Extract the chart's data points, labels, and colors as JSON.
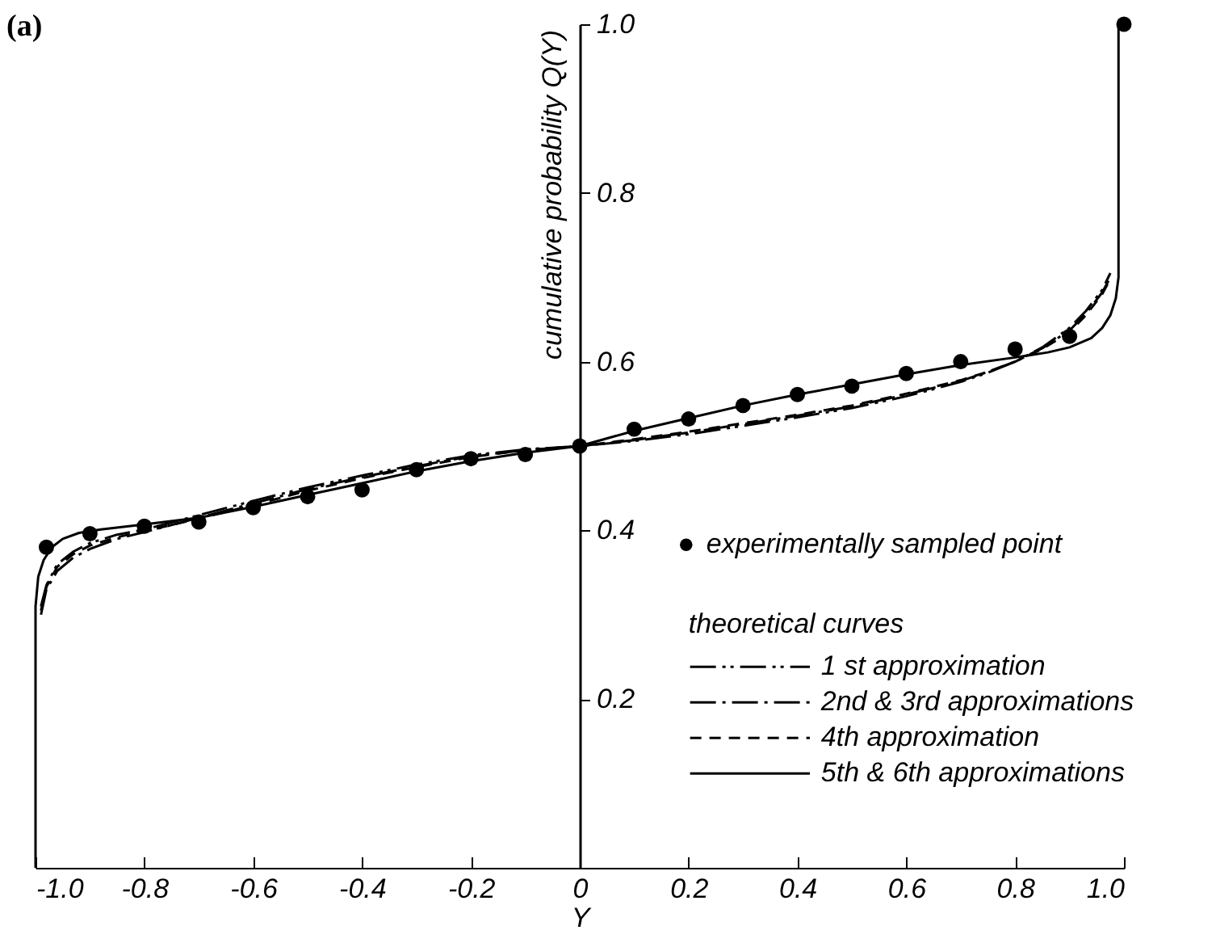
{
  "chart_data": {
    "type": "line",
    "annotations": [
      "(a)"
    ],
    "xlabel": "Y",
    "ylabel": "cumulative probability Q(Y)",
    "legend_title": "theoretical curves",
    "legend": "bottom right",
    "grid": false,
    "xlim": [
      -1.0,
      1.0
    ],
    "xticks": [
      {
        "value": -1.0,
        "label": "-1.0"
      },
      -0.8,
      -0.6,
      -0.4,
      -0.2,
      0,
      0.2,
      0.4,
      0.6,
      0.8,
      {
        "value": 1.0,
        "label": "1.0"
      }
    ],
    "ylim": [
      0,
      1.0
    ],
    "yticks": [
      0.2,
      0.4,
      0.6,
      0.8,
      {
        "value": 1.0,
        "label": "1.0"
      }
    ],
    "series": [
      {
        "name": "experimentally sampled point",
        "type": "scatter",
        "marker": "circle",
        "color": "#000000",
        "x": [
          -0.98,
          -0.9,
          -0.8,
          -0.7,
          -0.6,
          -0.5,
          -0.4,
          -0.3,
          -0.2,
          -0.1,
          0,
          0.1,
          0.2,
          0.3,
          0.4,
          0.5,
          0.6,
          0.7,
          0.8,
          0.9,
          1.0
        ],
        "values": [
          0.38,
          0.396,
          0.405,
          0.41,
          0.427,
          0.44,
          0.448,
          0.472,
          0.485,
          0.49,
          0.5,
          0.52,
          0.532,
          0.548,
          0.561,
          0.571,
          0.586,
          0.6,
          0.615,
          0.63,
          1.0
        ]
      },
      {
        "name": "1 st approximation",
        "line_style": "dashdotdot",
        "color": "#000000",
        "x": [
          -0.99,
          -0.98,
          -0.96,
          -0.93,
          -0.9,
          -0.85,
          -0.8,
          -0.7,
          -0.6,
          -0.5,
          -0.4,
          -0.3,
          -0.2,
          -0.1,
          0,
          0.1,
          0.2,
          0.3,
          0.4,
          0.5,
          0.6,
          0.7,
          0.75,
          0.8,
          0.85,
          0.9,
          0.93,
          0.96,
          0.975
        ],
        "values": [
          0.31,
          0.335,
          0.36,
          0.375,
          0.385,
          0.395,
          0.401,
          0.418,
          0.435,
          0.451,
          0.465,
          0.478,
          0.489,
          0.496,
          0.5,
          0.506,
          0.514,
          0.524,
          0.534,
          0.545,
          0.559,
          0.576,
          0.587,
          0.6,
          0.617,
          0.64,
          0.66,
          0.685,
          0.705
        ]
      },
      {
        "name": "2nd & 3rd approximations",
        "line_style": "dashdot",
        "color": "#000000",
        "x": [
          -0.99,
          -0.98,
          -0.96,
          -0.93,
          -0.9,
          -0.85,
          -0.8,
          -0.7,
          -0.6,
          -0.5,
          -0.4,
          -0.3,
          -0.2,
          -0.1,
          0,
          0.1,
          0.2,
          0.3,
          0.4,
          0.5,
          0.6,
          0.7,
          0.75,
          0.8,
          0.85,
          0.9,
          0.93,
          0.96,
          0.975
        ],
        "values": [
          0.3,
          0.33,
          0.352,
          0.368,
          0.378,
          0.39,
          0.398,
          0.415,
          0.432,
          0.449,
          0.463,
          0.476,
          0.488,
          0.495,
          0.5,
          0.507,
          0.516,
          0.526,
          0.536,
          0.547,
          0.561,
          0.577,
          0.588,
          0.6,
          0.616,
          0.637,
          0.657,
          0.682,
          0.7
        ]
      },
      {
        "name": "4th approximation",
        "line_style": "dashed",
        "color": "#000000",
        "x": [
          -0.99,
          -0.98,
          -0.96,
          -0.93,
          -0.9,
          -0.85,
          -0.8,
          -0.7,
          -0.6,
          -0.5,
          -0.4,
          -0.3,
          -0.2,
          -0.1,
          0,
          0.1,
          0.2,
          0.3,
          0.4,
          0.5,
          0.6,
          0.7,
          0.75,
          0.8,
          0.85,
          0.9,
          0.93,
          0.96,
          0.975
        ],
        "values": [
          0.305,
          0.333,
          0.357,
          0.372,
          0.382,
          0.392,
          0.399,
          0.414,
          0.43,
          0.447,
          0.462,
          0.475,
          0.487,
          0.495,
          0.5,
          0.508,
          0.517,
          0.527,
          0.537,
          0.548,
          0.562,
          0.578,
          0.588,
          0.6,
          0.615,
          0.635,
          0.655,
          0.68,
          0.698
        ]
      },
      {
        "name": "5th & 6th approximations",
        "line_style": "solid",
        "color": "#000000",
        "x": [
          -1.0,
          -1.0,
          -0.995,
          -0.985,
          -0.97,
          -0.95,
          -0.92,
          -0.88,
          -0.8,
          -0.7,
          -0.6,
          -0.5,
          -0.4,
          -0.3,
          -0.2,
          -0.1,
          0,
          0.1,
          0.2,
          0.3,
          0.4,
          0.5,
          0.6,
          0.7,
          0.8,
          0.86,
          0.9,
          0.94,
          0.96,
          0.975,
          0.985,
          0.99,
          0.99
        ],
        "values": [
          0,
          0.31,
          0.345,
          0.365,
          0.38,
          0.39,
          0.397,
          0.401,
          0.407,
          0.415,
          0.428,
          0.442,
          0.456,
          0.47,
          0.482,
          0.492,
          0.5,
          0.518,
          0.533,
          0.548,
          0.561,
          0.573,
          0.585,
          0.596,
          0.605,
          0.611,
          0.617,
          0.628,
          0.64,
          0.655,
          0.675,
          0.7,
          1.0
        ]
      }
    ]
  }
}
